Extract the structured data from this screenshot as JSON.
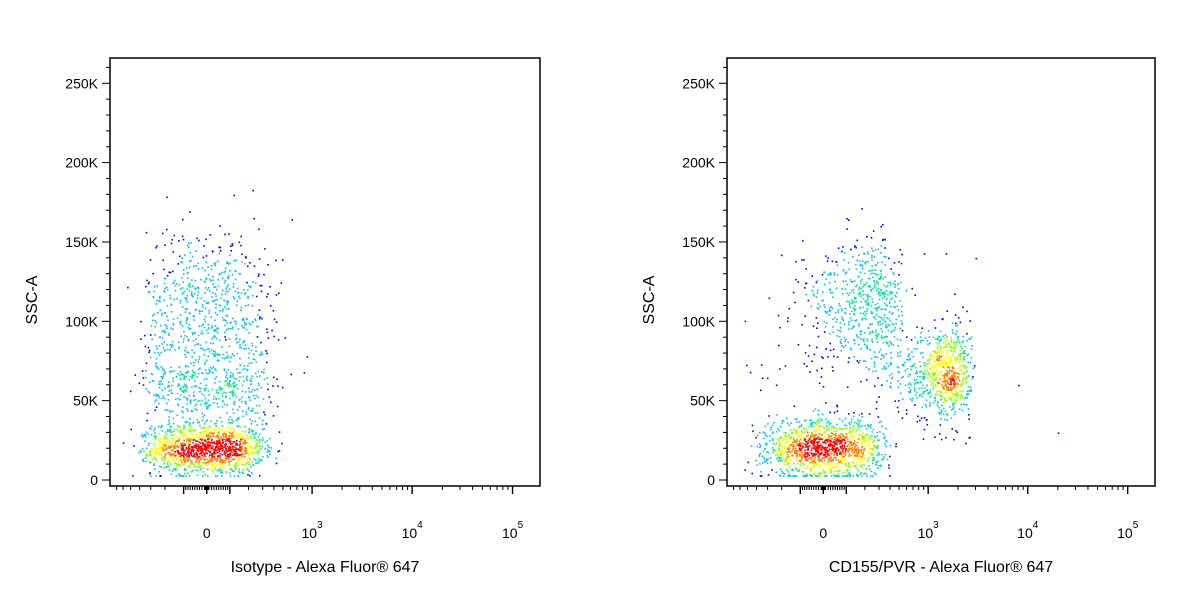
{
  "chart_data": [
    {
      "type": "scatter",
      "xlabel": "Isotype - Alexa Fluor® 647",
      "ylabel": "SSC-A",
      "x_scale": "biexponential",
      "ylim": [
        0,
        262144
      ],
      "y_ticks": [
        {
          "value": 0,
          "label": "0"
        },
        {
          "value": 50000,
          "label": "50K"
        },
        {
          "value": 100000,
          "label": "100K"
        },
        {
          "value": 150000,
          "label": "150K"
        },
        {
          "value": 200000,
          "label": "200K"
        },
        {
          "value": 250000,
          "label": "250K"
        }
      ],
      "x_ticks": [
        {
          "value": 0,
          "base": "0",
          "exp": ""
        },
        {
          "value": 1000,
          "base": "10",
          "exp": "3"
        },
        {
          "value": 10000,
          "base": "10",
          "exp": "4"
        },
        {
          "value": 100000,
          "base": "10",
          "exp": "5"
        }
      ],
      "populations": [
        {
          "x_center": 0,
          "x_spread": 150,
          "y_center": 20000,
          "y_spread": 8000,
          "count": 1300
        },
        {
          "x_center": 0,
          "x_spread": 170,
          "y_center": 60000,
          "y_spread": 15000,
          "count": 500
        },
        {
          "x_center": 0,
          "x_spread": 170,
          "y_center": 110000,
          "y_spread": 25000,
          "count": 600
        }
      ],
      "outliers": [
        {
          "x": 600,
          "y": 67000
        },
        {
          "x": 820,
          "y": 68000
        },
        {
          "x": 880,
          "y": 78000
        },
        {
          "x": 520,
          "y": 90000
        },
        {
          "x": 420,
          "y": 100000
        }
      ],
      "density_colors": [
        "#0000ff",
        "#00c0ff",
        "#00e0a0",
        "#90ff00",
        "#ffff00",
        "#ff8000",
        "#ff0000"
      ]
    },
    {
      "type": "scatter",
      "xlabel": "CD155/PVR - Alexa Fluor® 647",
      "ylabel": "SSC-A",
      "x_scale": "biexponential",
      "ylim": [
        0,
        262144
      ],
      "y_ticks": [
        {
          "value": 0,
          "label": "0"
        },
        {
          "value": 50000,
          "label": "50K"
        },
        {
          "value": 100000,
          "label": "100K"
        },
        {
          "value": 150000,
          "label": "150K"
        },
        {
          "value": 200000,
          "label": "200K"
        },
        {
          "value": 250000,
          "label": "250K"
        }
      ],
      "x_ticks": [
        {
          "value": 0,
          "base": "0",
          "exp": ""
        },
        {
          "value": 1000,
          "base": "10",
          "exp": "3"
        },
        {
          "value": 10000,
          "base": "10",
          "exp": "4"
        },
        {
          "value": 100000,
          "base": "10",
          "exp": "5"
        }
      ],
      "populations": [
        {
          "x_center": 0,
          "x_spread": 150,
          "y_center": 20000,
          "y_spread": 9000,
          "count": 1300
        },
        {
          "x_center": 200,
          "x_spread": 160,
          "y_center": 110000,
          "y_spread": 20000,
          "count": 600
        },
        {
          "x_center": 1400,
          "x_spread": 600,
          "y_center": 68000,
          "y_spread": 15000,
          "count": 800
        }
      ],
      "outliers": [
        {
          "x": 20000,
          "y": 30000
        },
        {
          "x": 8000,
          "y": 60000
        },
        {
          "x": 3000,
          "y": 140000
        },
        {
          "x": 1500,
          "y": 143000
        },
        {
          "x": 900,
          "y": 143000
        }
      ],
      "density_colors": [
        "#0000ff",
        "#00c0ff",
        "#00e0a0",
        "#90ff00",
        "#ffff00",
        "#ff8000",
        "#ff0000"
      ]
    }
  ]
}
